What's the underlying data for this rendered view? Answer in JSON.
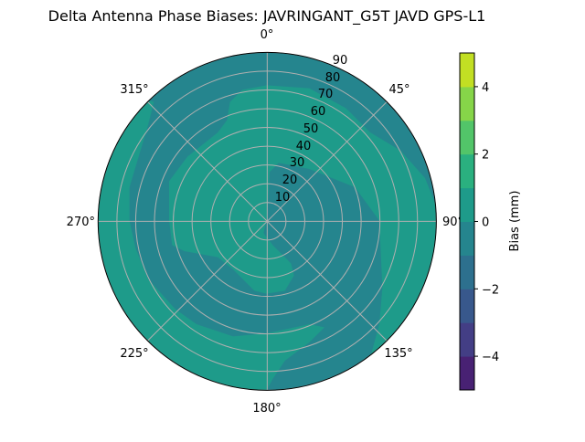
{
  "chart_data": {
    "type": "polar-contour",
    "title": "Delta Antenna Phase Biases: JAVRINGANT_G5T  JAVD GPS-L1",
    "angular_ticks": [
      "0°",
      "45°",
      "90°",
      "135°",
      "180°",
      "225°",
      "270°",
      "315°"
    ],
    "radial_ticks": [
      "10",
      "20",
      "30",
      "40",
      "50",
      "60",
      "70",
      "80",
      "90"
    ],
    "radial_range": [
      0,
      90
    ],
    "grid": true,
    "colorbar": {
      "label": "Bias (mm)",
      "levels": [
        -5,
        -4,
        -3,
        -2,
        -1,
        0,
        1,
        2,
        3,
        4,
        5
      ],
      "tick_values": [
        -4,
        -2,
        0,
        2,
        4
      ],
      "tick_labels": [
        "−4",
        "−2",
        "0",
        "2",
        "4"
      ],
      "colors": [
        "#482173",
        "#433e85",
        "#38588c",
        "#2d708e",
        "#25858e",
        "#1e9b8a",
        "#2ab07f",
        "#52c569",
        "#86d549",
        "#c2df23"
      ]
    },
    "visible_bands": [
      {
        "range": [
          -1,
          0
        ],
        "color": "#25858e"
      },
      {
        "range": [
          0,
          1
        ],
        "color": "#1e9b8a"
      }
    ]
  }
}
